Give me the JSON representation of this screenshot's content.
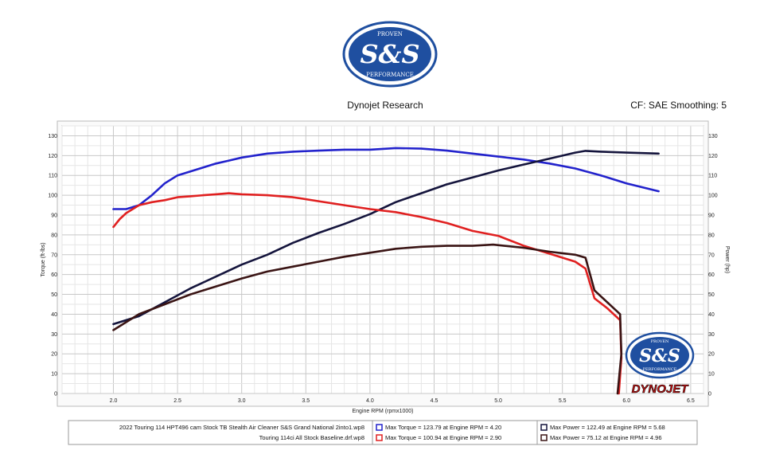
{
  "header": {
    "logo_top": "PROVEN",
    "logo_main": "S&S",
    "logo_bottom": "PERFORMANCE",
    "title": "Dynojet Research",
    "cf_text": "CF: SAE Smoothing: 5"
  },
  "watermark": {
    "logo_top": "PROVEN",
    "logo_main": "S&S",
    "logo_bottom": "PERFORMANCE",
    "brand": "DYNOJET"
  },
  "legend": {
    "run1_name": "2022 Touring 114 HPT496 cam Stock TB  Stealth Air Cleaner S&S Grand National 2into1.wp8",
    "run1_torque": "Max Torque = 123.79 at Engine RPM = 4.20",
    "run1_power": "Max Power = 122.49 at Engine RPM = 5.68",
    "run2_name": "Touring 114ci All Stock Baseline.drf.wp8",
    "run2_torque": "Max Torque = 100.94 at Engine RPM = 2.90",
    "run2_power": "Max Power = 75.12 at Engine RPM = 4.96"
  },
  "colors": {
    "run1_torque": "#2222cc",
    "run1_power": "#14143c",
    "run2_torque": "#e02020",
    "run2_power": "#3a1414",
    "logo_blue": "#1f4fa0",
    "grid": "#d4d4d4",
    "plot_bg": "#ececec"
  },
  "chart_data": {
    "type": "line",
    "title": "Dynojet Research",
    "xlabel": "Engine RPM (rpmx1000)",
    "ylabel_left": "Torque (ft-lbs)",
    "ylabel_right": "Power (hp)",
    "xlim": [
      1.6,
      6.6
    ],
    "ylim": [
      0,
      135
    ],
    "x_ticks": [
      "2.0",
      "2.5",
      "3.0",
      "3.5",
      "4.0",
      "4.5",
      "5.0",
      "5.5",
      "6.0",
      "6.5"
    ],
    "y_ticks": [
      "0",
      "10",
      "20",
      "30",
      "40",
      "50",
      "60",
      "70",
      "80",
      "90",
      "100",
      "110",
      "120",
      "130"
    ],
    "grid": true,
    "series": [
      {
        "key": "run1_torque",
        "name": "Max Torque = 123.79 at Engine RPM = 4.20",
        "x": [
          2.0,
          2.1,
          2.2,
          2.3,
          2.4,
          2.5,
          2.6,
          2.7,
          2.8,
          2.9,
          3.0,
          3.2,
          3.4,
          3.6,
          3.8,
          4.0,
          4.2,
          4.4,
          4.6,
          4.8,
          5.0,
          5.2,
          5.4,
          5.6,
          5.8,
          6.0,
          6.25
        ],
        "y": [
          93,
          93,
          95,
          100,
          106,
          110,
          112,
          114,
          116,
          117.5,
          119,
          121,
          122,
          122.5,
          123,
          123,
          123.8,
          123.5,
          122.5,
          121,
          119.5,
          118,
          116,
          113.5,
          110,
          106,
          102
        ]
      },
      {
        "key": "run1_power",
        "name": "Max Power = 122.49 at Engine RPM = 5.68",
        "x": [
          2.0,
          2.2,
          2.4,
          2.6,
          2.8,
          3.0,
          3.2,
          3.4,
          3.6,
          3.8,
          4.0,
          4.2,
          4.4,
          4.6,
          4.8,
          5.0,
          5.2,
          5.4,
          5.6,
          5.68,
          5.8,
          6.0,
          6.25
        ],
        "y": [
          35,
          39,
          46,
          53,
          59,
          65,
          70,
          76,
          81,
          85.5,
          90.5,
          96.5,
          101,
          105.5,
          109,
          112.5,
          115.5,
          118.5,
          121.5,
          122.4,
          122,
          121.5,
          121
        ]
      },
      {
        "key": "run2_torque",
        "name": "Max Torque = 100.94 at Engine RPM = 2.90",
        "x": [
          2.0,
          2.05,
          2.1,
          2.2,
          2.3,
          2.4,
          2.5,
          2.6,
          2.7,
          2.8,
          2.9,
          3.0,
          3.2,
          3.4,
          3.6,
          3.8,
          4.0,
          4.2,
          4.4,
          4.6,
          4.8,
          5.0,
          5.2,
          5.4,
          5.6,
          5.68,
          5.75,
          5.85,
          5.95,
          5.96,
          5.94
        ],
        "y": [
          84,
          88,
          91,
          95,
          96.5,
          97.5,
          99,
          99.5,
          100,
          100.5,
          101,
          100.5,
          100,
          99,
          97,
          95,
          93,
          91.5,
          89,
          86,
          82,
          79.5,
          74.5,
          70.5,
          66.5,
          63,
          48,
          43,
          37,
          18,
          0
        ]
      },
      {
        "key": "run2_power",
        "name": "Max Power = 75.12 at Engine RPM = 4.96",
        "x": [
          2.0,
          2.1,
          2.2,
          2.4,
          2.6,
          2.8,
          3.0,
          3.2,
          3.4,
          3.6,
          3.8,
          4.0,
          4.2,
          4.4,
          4.6,
          4.8,
          4.96,
          5.2,
          5.4,
          5.6,
          5.68,
          5.75,
          5.85,
          5.95,
          5.96,
          5.93
        ],
        "y": [
          32,
          36,
          40,
          45,
          50,
          54,
          58,
          61.5,
          64,
          66.5,
          69,
          71,
          73,
          74,
          74.5,
          74.5,
          75.1,
          73.5,
          71.5,
          70,
          68.5,
          52,
          46,
          40,
          20,
          0
        ]
      }
    ]
  }
}
